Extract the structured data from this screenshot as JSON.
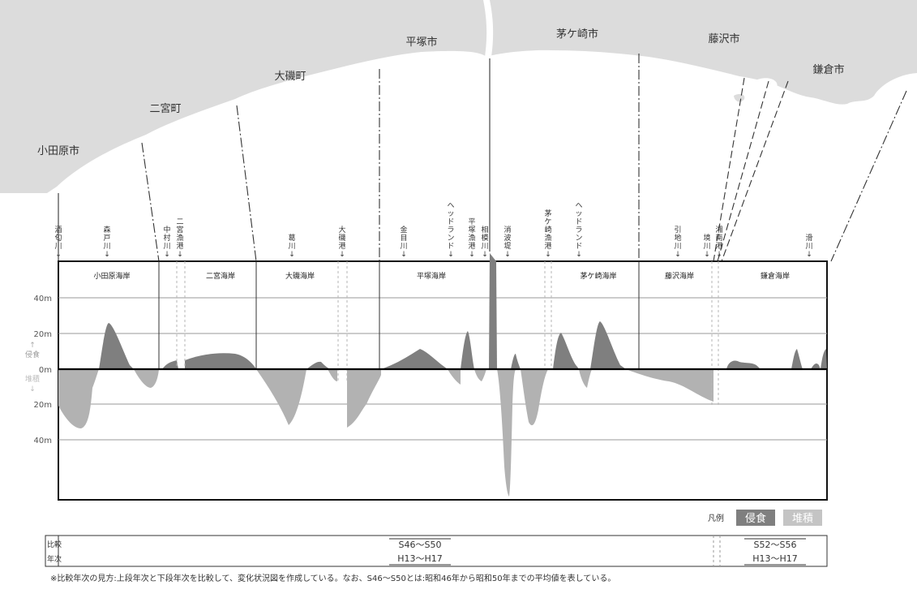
{
  "map": {
    "cities": [
      "小田原市",
      "二宮町",
      "大磯町",
      "平塚市",
      "茅ケ崎市",
      "藤沢市",
      "鎌倉市"
    ]
  },
  "colors": {
    "land": "#dcdcdc",
    "erosion": "#7f7f7f",
    "deposition": "#b2b2b2",
    "frame": "#111111",
    "grid": "#9a9a9a"
  },
  "chart_data": {
    "type": "area",
    "y_unit": "m",
    "ylim": [
      -40,
      40
    ],
    "yticks_upper": [
      "40m",
      "20m",
      "0m"
    ],
    "yticks_lower": [
      "20m",
      "40m"
    ],
    "ylabel_up": "侵食",
    "ylabel_down": "堆積",
    "grid": true,
    "coasts": [
      "小田原海岸",
      "二宮海岸",
      "大磯海岸",
      "平塚海岸",
      "茅ケ崎海岸",
      "藤沢海岸",
      "鎌倉海岸"
    ],
    "landmarks": [
      "酒匂川",
      "森戸川",
      "中村川",
      "二宮漁港",
      "葛川",
      "大磯港",
      "金目川",
      "ヘッドランド",
      "平塚漁港",
      "相模川",
      "消波堤",
      "茅ケ崎漁港",
      "ヘッドランド",
      "引地川",
      "境川",
      "湘南港",
      "滑川"
    ],
    "series": [
      {
        "name": "侵食",
        "description": "erosion"
      },
      {
        "name": "堆積",
        "description": "deposition"
      }
    ],
    "legend_title": "凡例",
    "legend_position": "bottom-right"
  },
  "comparison": {
    "row_labels": [
      "比較",
      "年次"
    ],
    "period_a_upper": "S46～S50",
    "period_a_lower": "H13～H17",
    "period_b_upper": "S52～S56",
    "period_b_lower": "H13～H17"
  },
  "footnote": {
    "before": "※比較年次の見方:上段年次と下段年次を比較して、変化状況図を作成している。なお、",
    "code": "S46～S50",
    "after": "とは:昭和46年から昭和50年までの平均値を表している。"
  }
}
